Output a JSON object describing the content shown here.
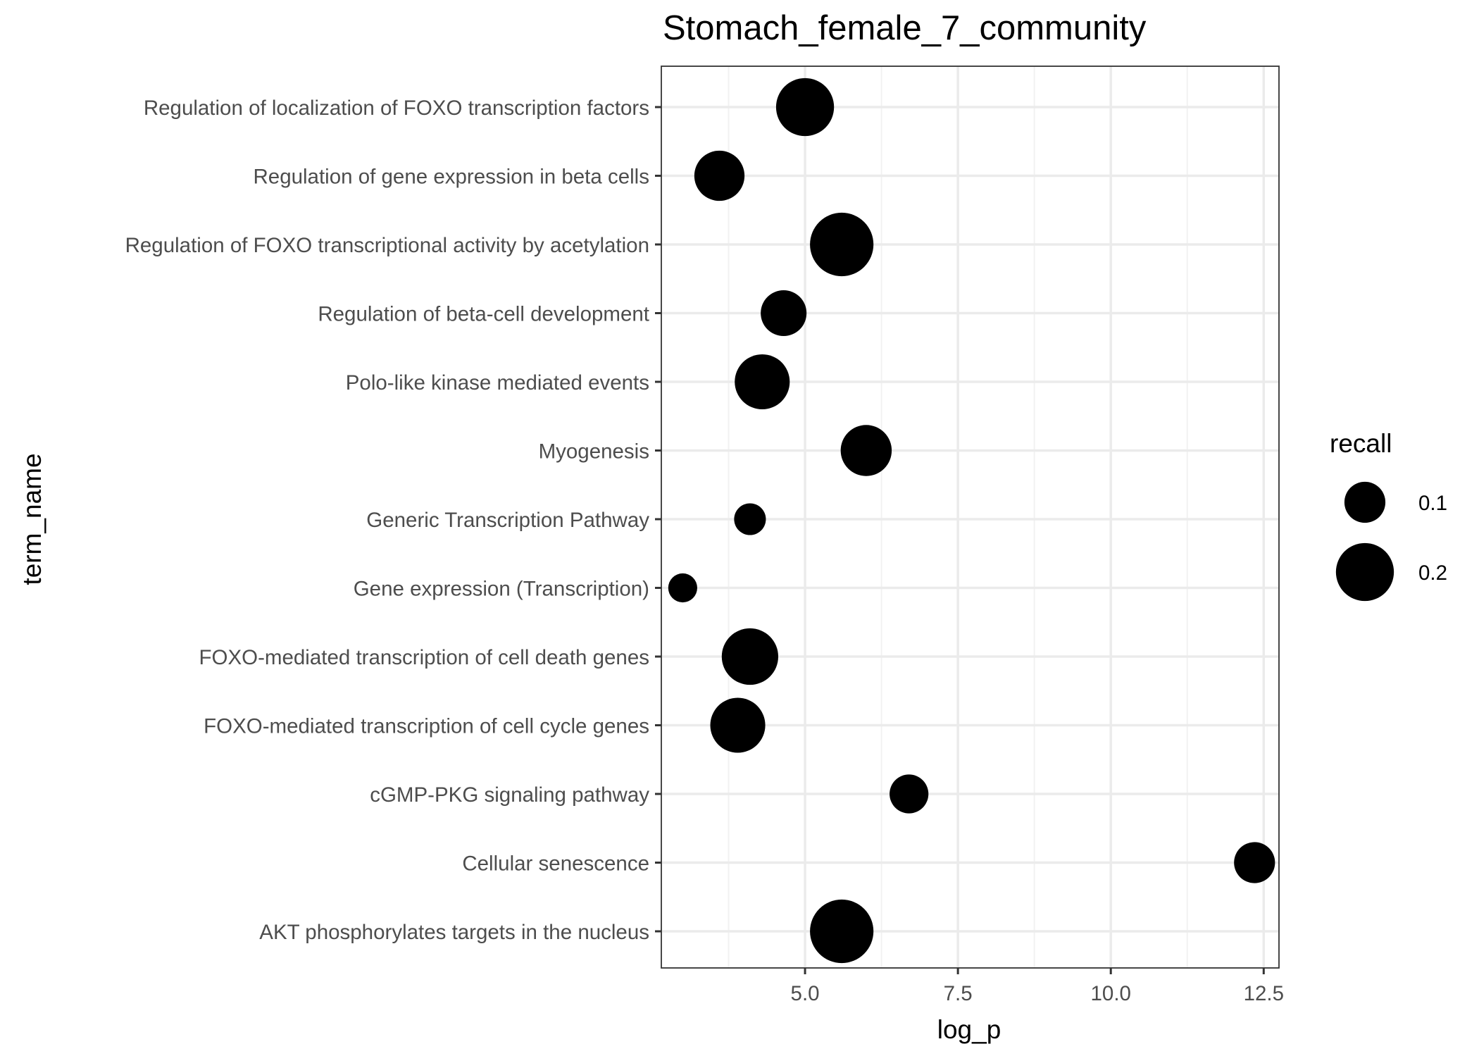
{
  "chart_data": {
    "type": "scatter",
    "title": "Stomach_female_7_community",
    "xlabel": "log_p",
    "ylabel": "term_name",
    "xlim": [
      2.65,
      12.75
    ],
    "x_ticks": [
      5.0,
      7.5,
      10.0,
      12.5
    ],
    "x_tick_labels": [
      "5.0",
      "7.5",
      "10.0",
      "12.5"
    ],
    "grid": true,
    "categories": [
      "Regulation of localization of FOXO transcription factors",
      "Regulation of gene expression in beta cells",
      "Regulation of FOXO transcriptional activity by acetylation",
      "Regulation of beta-cell development",
      "Polo-like kinase mediated events",
      "Myogenesis",
      "Generic Transcription Pathway",
      "Gene expression (Transcription)",
      "FOXO-mediated transcription of cell death genes",
      "FOXO-mediated transcription of cell cycle genes",
      "cGMP-PKG signaling pathway",
      "Cellular senescence",
      "AKT phosphorylates targets in the nucleus"
    ],
    "points": [
      {
        "term": "Regulation of localization of FOXO transcription factors",
        "log_p": 5.0,
        "recall": 0.2
      },
      {
        "term": "Regulation of gene expression in beta cells",
        "log_p": 3.6,
        "recall": 0.15
      },
      {
        "term": "Regulation of FOXO transcriptional activity by acetylation",
        "log_p": 5.6,
        "recall": 0.24
      },
      {
        "term": "Regulation of beta-cell development",
        "log_p": 4.65,
        "recall": 0.125
      },
      {
        "term": "Polo-like kinase mediated events",
        "log_p": 4.3,
        "recall": 0.18
      },
      {
        "term": "Myogenesis",
        "log_p": 6.0,
        "recall": 0.155
      },
      {
        "term": "Generic Transcription Pathway",
        "log_p": 4.1,
        "recall": 0.06
      },
      {
        "term": "Gene expression (Transcription)",
        "log_p": 3.0,
        "recall": 0.05
      },
      {
        "term": "FOXO-mediated transcription of cell death genes",
        "log_p": 4.1,
        "recall": 0.19
      },
      {
        "term": "FOXO-mediated transcription of cell cycle genes",
        "log_p": 3.9,
        "recall": 0.18
      },
      {
        "term": "cGMP-PKG signaling pathway",
        "log_p": 6.7,
        "recall": 0.09
      },
      {
        "term": "Cellular senescence",
        "log_p": 12.35,
        "recall": 0.1
      },
      {
        "term": "AKT phosphorylates targets in the nucleus",
        "log_p": 5.6,
        "recall": 0.24
      }
    ],
    "legend": {
      "title": "recall",
      "placement": "right",
      "entries": [
        {
          "label": "0.1",
          "value": 0.1
        },
        {
          "label": "0.2",
          "value": 0.2
        }
      ]
    },
    "colors": {
      "point": "#000000",
      "grid_major": "#ebebeb",
      "grid_minor": "#f2f2f2",
      "panel_border": "#333333",
      "tick_label": "#4d4d4d",
      "axis_title": "#000000"
    }
  }
}
